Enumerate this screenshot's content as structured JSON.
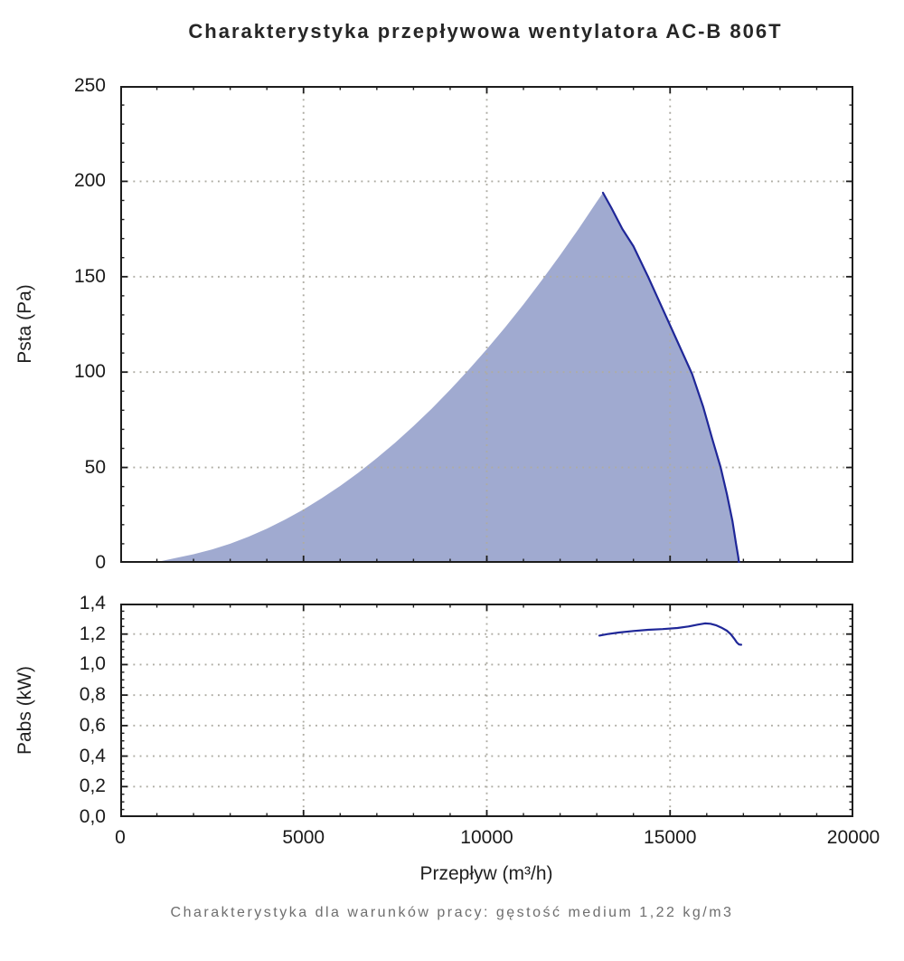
{
  "title": "Charakterystyka przepływowa wentylatora AC-B 806T",
  "caption": "Charakterystyka dla warunków pracy: gęstość medium 1,22 kg/m3",
  "colors": {
    "fill": "#a0aad0",
    "line": "#1f2798",
    "grid": "#aeaca3",
    "axis": "#1c1c1c",
    "caption_text": "#6e6e6e"
  },
  "chart_data": [
    {
      "type": "area",
      "name": "psta-curve-chart",
      "ylabel": "Psta (Pa)",
      "xlim": [
        0,
        20000
      ],
      "ylim": [
        0,
        250
      ],
      "xticks": [
        0,
        5000,
        10000,
        15000,
        20000
      ],
      "xtick_labels": [
        "0",
        "5000",
        "10000",
        "15000",
        "20000"
      ],
      "yticks": [
        0,
        50,
        100,
        150,
        200,
        250
      ],
      "ytick_labels": [
        "0",
        "50",
        "100",
        "150",
        "200",
        "250"
      ],
      "x_minor_step": 1000,
      "y_minor_step": 10,
      "grid": "dotted",
      "grid_x": [
        5000,
        10000,
        15000
      ],
      "grid_y": [
        50,
        100,
        150,
        200
      ],
      "show_xtick_labels": false,
      "series": [
        {
          "name": "psta-area",
          "style": "fill",
          "points": [
            [
              900,
              0
            ],
            [
              1500,
              2.5
            ],
            [
              2000,
              4.5
            ],
            [
              2500,
              7
            ],
            [
              3000,
              10
            ],
            [
              3500,
              13.7
            ],
            [
              4000,
              17.9
            ],
            [
              4500,
              22.7
            ],
            [
              5000,
              28
            ],
            [
              5500,
              33.9
            ],
            [
              6000,
              40.3
            ],
            [
              6500,
              47.3
            ],
            [
              7000,
              54.9
            ],
            [
              7500,
              63
            ],
            [
              8000,
              71.7
            ],
            [
              8500,
              80.9
            ],
            [
              9000,
              90.7
            ],
            [
              9500,
              101.1
            ],
            [
              10000,
              112
            ],
            [
              10500,
              123.5
            ],
            [
              11000,
              135.5
            ],
            [
              11500,
              148.1
            ],
            [
              12000,
              161.3
            ],
            [
              12500,
              175
            ],
            [
              13000,
              189.3
            ],
            [
              13170,
              194
            ],
            [
              13400,
              186
            ],
            [
              13700,
              175
            ],
            [
              14000,
              166
            ],
            [
              14400,
              150
            ],
            [
              14800,
              133
            ],
            [
              15200,
              116
            ],
            [
              15600,
              99
            ],
            [
              15900,
              82
            ],
            [
              16150,
              65
            ],
            [
              16380,
              50
            ],
            [
              16550,
              36
            ],
            [
              16700,
              22
            ],
            [
              16800,
              10
            ],
            [
              16860,
              3
            ],
            [
              16880,
              0
            ]
          ]
        },
        {
          "name": "psta-stall-line",
          "style": "stroke",
          "points": [
            [
              13170,
              194
            ],
            [
              13400,
              186
            ],
            [
              13700,
              175
            ],
            [
              14000,
              166
            ],
            [
              14400,
              150
            ],
            [
              14800,
              133
            ],
            [
              15200,
              116
            ],
            [
              15600,
              99
            ],
            [
              15900,
              82
            ],
            [
              16150,
              65
            ],
            [
              16380,
              50
            ],
            [
              16550,
              36
            ],
            [
              16700,
              22
            ],
            [
              16800,
              10
            ],
            [
              16860,
              3
            ],
            [
              16880,
              0
            ]
          ]
        }
      ]
    },
    {
      "type": "line",
      "name": "pabs-curve-chart",
      "ylabel": "Pabs (kW)",
      "xlabel": "Przepływ (m³/h)",
      "xlim": [
        0,
        20000
      ],
      "ylim": [
        0,
        1.4
      ],
      "xticks": [
        0,
        5000,
        10000,
        15000,
        20000
      ],
      "xtick_labels": [
        "0",
        "5000",
        "10000",
        "15000",
        "20000"
      ],
      "yticks": [
        0,
        0.2,
        0.4,
        0.6,
        0.8,
        1.0,
        1.2,
        1.4
      ],
      "ytick_labels": [
        "0,0",
        "0,2",
        "0,4",
        "0,6",
        "0,8",
        "1,0",
        "1,2",
        "1,4"
      ],
      "x_minor_step": 1000,
      "y_minor_step": 0.05,
      "grid": "dotted",
      "grid_x": [
        5000,
        10000,
        15000
      ],
      "grid_y": [
        0.2,
        0.4,
        0.6,
        0.8,
        1.0,
        1.2
      ],
      "show_xtick_labels": true,
      "series": [
        {
          "name": "pabs-line",
          "style": "stroke",
          "points": [
            [
              13070,
              1.19
            ],
            [
              13300,
              1.2
            ],
            [
              13600,
              1.21
            ],
            [
              14000,
              1.22
            ],
            [
              14400,
              1.228
            ],
            [
              14800,
              1.233
            ],
            [
              15200,
              1.24
            ],
            [
              15500,
              1.25
            ],
            [
              15750,
              1.262
            ],
            [
              15950,
              1.27
            ],
            [
              16100,
              1.268
            ],
            [
              16250,
              1.258
            ],
            [
              16400,
              1.242
            ],
            [
              16550,
              1.222
            ],
            [
              16650,
              1.2
            ],
            [
              16750,
              1.17
            ],
            [
              16820,
              1.145
            ],
            [
              16880,
              1.132
            ],
            [
              16940,
              1.13
            ]
          ]
        }
      ]
    }
  ]
}
